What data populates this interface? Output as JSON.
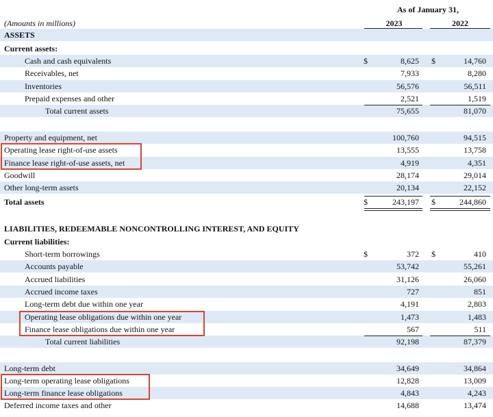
{
  "header": {
    "period": "As of January 31,",
    "units": "(Amounts in millions)",
    "year1": "2023",
    "year2": "2022"
  },
  "rows": [
    {
      "label": "ASSETS"
    },
    {
      "label": "Current assets:"
    },
    {
      "label": "Cash and cash equivalents",
      "d1": "$",
      "v1": "8,625",
      "d2": "$",
      "v2": "14,760"
    },
    {
      "label": "Receivables, net",
      "v1": "7,933",
      "v2": "8,280"
    },
    {
      "label": "Inventories",
      "v1": "56,576",
      "v2": "56,511"
    },
    {
      "label": "Prepaid expenses and other",
      "v1": "2,521",
      "v2": "1,519"
    },
    {
      "label": "Total current assets",
      "v1": "75,655",
      "v2": "81,070"
    },
    {
      "label": "Property and equipment, net",
      "v1": "100,760",
      "v2": "94,515"
    },
    {
      "label": "Operating lease right-of-use assets",
      "v1": "13,555",
      "v2": "13,758"
    },
    {
      "label": "Finance lease right-of-use assets, net",
      "v1": "4,919",
      "v2": "4,351"
    },
    {
      "label": "Goodwill",
      "v1": "28,174",
      "v2": "29,014"
    },
    {
      "label": "Other long-term assets",
      "v1": "20,134",
      "v2": "22,152"
    },
    {
      "label": "Total assets",
      "d1": "$",
      "v1": "243,197",
      "d2": "$",
      "v2": "244,860"
    },
    {
      "label": "LIABILITIES, REDEEMABLE NONCONTROLLING INTEREST, AND EQUITY"
    },
    {
      "label": "Current liabilities:"
    },
    {
      "label": "Short-term borrowings",
      "d1": "$",
      "v1": "372",
      "d2": "$",
      "v2": "410"
    },
    {
      "label": "Accounts payable",
      "v1": "53,742",
      "v2": "55,261"
    },
    {
      "label": "Accrued liabilities",
      "v1": "31,126",
      "v2": "26,060"
    },
    {
      "label": "Accrued income taxes",
      "v1": "727",
      "v2": "851"
    },
    {
      "label": "Long-term debt due within one year",
      "v1": "4,191",
      "v2": "2,803"
    },
    {
      "label": "Operating lease obligations due within one year",
      "v1": "1,473",
      "v2": "1,483"
    },
    {
      "label": "Finance lease obligations due within one year",
      "v1": "567",
      "v2": "511"
    },
    {
      "label": "Total current liabilities",
      "v1": "92,198",
      "v2": "87,379"
    },
    {
      "label": "Long-term debt",
      "v1": "34,649",
      "v2": "34,864"
    },
    {
      "label": "Long-term operating lease obligations",
      "v1": "12,828",
      "v2": "13,009"
    },
    {
      "label": "Long-term finance lease obligations",
      "v1": "4,843",
      "v2": "4,243"
    },
    {
      "label": "Deferred income taxes and other",
      "v1": "14,688",
      "v2": "13,474"
    }
  ]
}
